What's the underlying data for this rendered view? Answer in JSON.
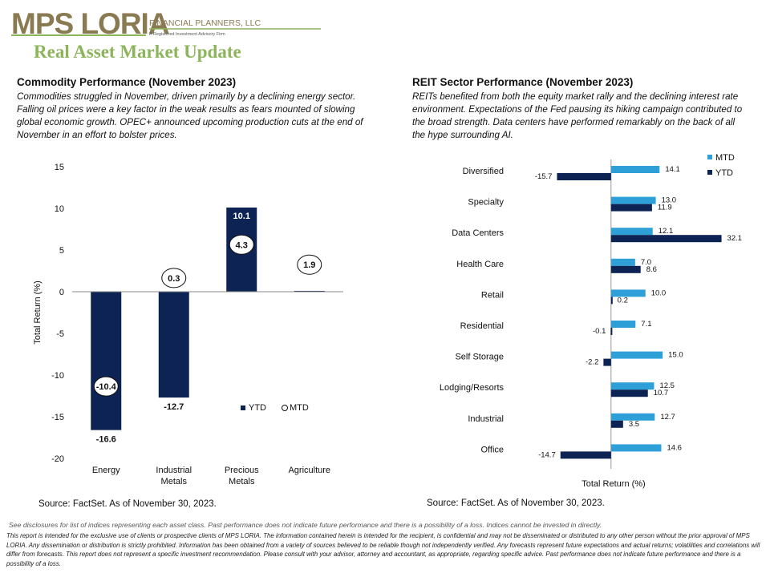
{
  "header": {
    "logo_text": "MPS LORIA",
    "logo_subtitle": "FINANCIAL PLANNERS, LLC",
    "logo_tagline": "A Registered Investment Advisory Firm",
    "title": "Real Asset Market Update"
  },
  "colors": {
    "navy": "#0d2353",
    "light_blue": "#2f9fd8",
    "title_green": "#8cb45a",
    "logo_brown": "#8a7a52"
  },
  "commodity": {
    "title": "Commodity  Performance (November 2023)",
    "description": "Commodities struggled in November, driven primarily by a declining energy sector. Falling oil prices were  a key factor in the weak results as fears mounted of slowing global economic growth. OPEC+ announced upcoming production cuts at the end of November in an effort to bolster prices.",
    "source": "Source: FactSet. As of November 30, 2023."
  },
  "reit": {
    "title": "REIT Sector Performance (November 2023)",
    "description": "REITs benefited from both the equity market rally and the declining interest rate environment.  Expectations of the Fed pausing its hiking campaign contributed to the broad strength. Data centers have performed remarkably on the back of all the hype  surrounding  AI.",
    "source": "Source: FactSet. As of November 30, 2023."
  },
  "footer": {
    "note": "See disclosures for list of indices representing each asset class. Past performance does not indicate future performance and there is a possibility of a loss. Indices cannot be invested in directly.",
    "disclaimer": "This report is intended for the exclusive use of clients or prospective clients of MPS LORIA. The information contained herein is intended for the recipient, is confidential and may not be disseminated or distributed to any other person without the prior approval of MPS LORIA. Any dissemination or distribution is strictly prohibited. Information has been obtained from a variety of sources believed to be reliable though not independently verified. Any forecasts represent future expectations and actual returns; volatilities and correlations will differ from forecasts. This report does not represent a specific investment recommendation. Please consult with your advisor, attorney and accountant, as appropriate, regarding specific advice. Past performance does not indicate future performance and there is a possibility of a loss."
  },
  "chart_data": [
    {
      "type": "bar",
      "orientation": "vertical",
      "categories": [
        [
          "Energy"
        ],
        [
          "Industrial",
          "Metals"
        ],
        [
          "Precious",
          "Metals"
        ],
        [
          "Agriculture"
        ]
      ],
      "series": [
        {
          "name": "YTD",
          "values": [
            -16.6,
            -12.7,
            10.1,
            0.1
          ],
          "value_labels": [
            "-16.6",
            "-12.7",
            "10.1",
            ""
          ],
          "style": "bar",
          "color": "#0d2353"
        },
        {
          "name": "MTD",
          "values": [
            -10.4,
            0.3,
            4.3,
            1.9
          ],
          "value_labels": [
            "-10.4",
            "0.3",
            "4.3",
            "1.9"
          ],
          "style": "marker",
          "color": "#ffffff"
        }
      ],
      "ylabel": "Total Return (%)",
      "ylim": [
        -20,
        15
      ],
      "yticks": [
        15,
        10,
        5,
        0,
        -5,
        -10,
        -15,
        -20
      ],
      "grid": false,
      "legend": "bottom-right"
    },
    {
      "type": "bar",
      "orientation": "horizontal",
      "categories": [
        "Diversified",
        "Specialty",
        "Data Centers",
        "Health Care",
        "Retail",
        "Residential",
        "Self Storage",
        "Lodging/Resorts",
        "Industrial",
        "Office"
      ],
      "series": [
        {
          "name": "MTD",
          "values": [
            14.1,
            13.0,
            12.1,
            7.0,
            10.0,
            7.1,
            15.0,
            12.5,
            12.7,
            14.6
          ],
          "value_labels": [
            "14.1",
            "13.0",
            "12.1",
            "7.0",
            "10.0",
            "7.1",
            "15.0",
            "12.5",
            "12.7",
            "14.6"
          ],
          "color": "#2f9fd8"
        },
        {
          "name": "YTD",
          "values": [
            -15.7,
            11.9,
            32.1,
            8.6,
            0.2,
            -0.1,
            -2.2,
            10.7,
            3.5,
            -14.7
          ],
          "value_labels": [
            "-15.7",
            "11.9",
            "32.1",
            "8.6",
            "0.2",
            "-0.1",
            "-2.2",
            "10.7",
            "3.5",
            "-14.7"
          ],
          "color": "#0d2353"
        }
      ],
      "xlabel": "Total Return (%)",
      "xlim": [
        -20,
        35
      ],
      "grid": false,
      "legend": "top-right"
    }
  ]
}
